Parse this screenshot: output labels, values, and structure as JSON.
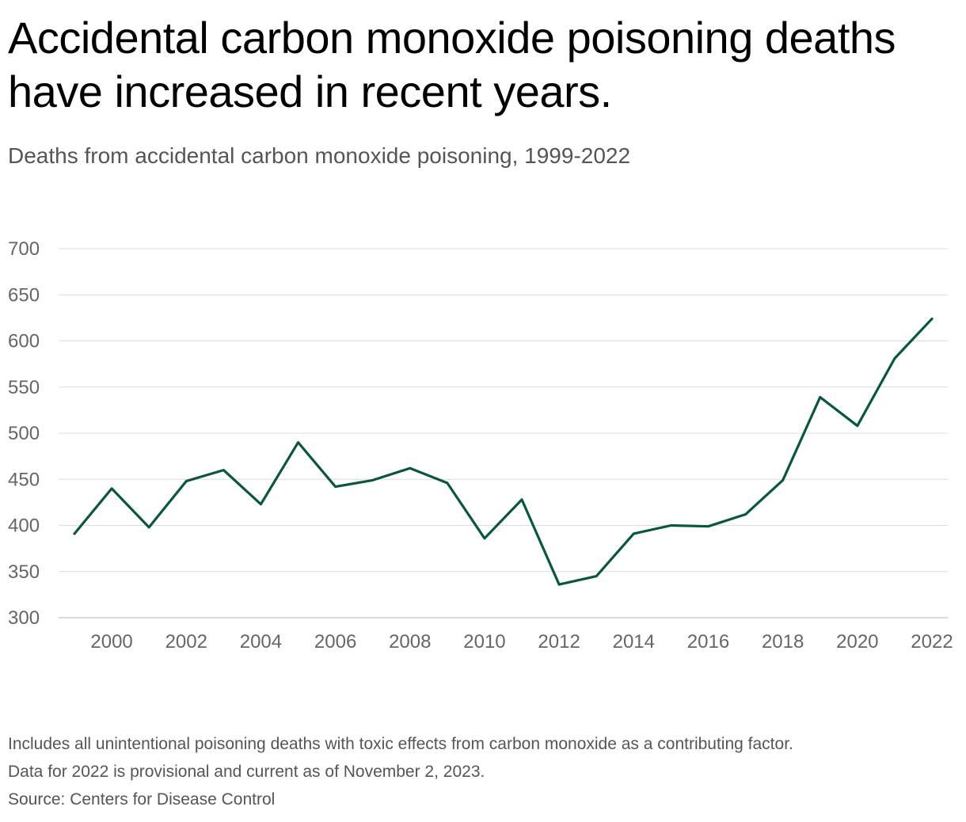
{
  "title": "Accidental carbon monoxide poisoning deaths have increased in recent years.",
  "subtitle": "Deaths from accidental carbon monoxide poisoning, 1999-2022",
  "notes": {
    "line1": "Includes all unintentional poisoning deaths with toxic effects from carbon monoxide as a contributing factor.",
    "line2": "Data for 2022 is provisional and current as of November 2, 2023.",
    "source": "Source: Centers for Disease Control"
  },
  "colors": {
    "line": "#0b5640",
    "grid": "#dcdcdc",
    "tick_text": "#666666"
  },
  "chart_data": {
    "type": "line",
    "title": "",
    "xlabel": "",
    "ylabel": "",
    "x": [
      1999,
      2000,
      2001,
      2002,
      2003,
      2004,
      2005,
      2006,
      2007,
      2008,
      2009,
      2010,
      2011,
      2012,
      2013,
      2014,
      2015,
      2016,
      2017,
      2018,
      2019,
      2020,
      2021,
      2022
    ],
    "series": [
      {
        "values": [
          391,
          440,
          398,
          448,
          460,
          423,
          490,
          442,
          449,
          462,
          446,
          386,
          428,
          336,
          345,
          391,
          400,
          399,
          412,
          449,
          539,
          508,
          581,
          624
        ]
      }
    ],
    "xlim": [
      1999,
      2022
    ],
    "ylim": [
      300,
      700
    ],
    "xticks": [
      2000,
      2002,
      2004,
      2006,
      2008,
      2010,
      2012,
      2014,
      2016,
      2018,
      2020,
      2022
    ],
    "yticks": [
      300,
      350,
      400,
      450,
      500,
      550,
      600,
      650,
      700
    ],
    "grid": true,
    "legend": "none"
  }
}
